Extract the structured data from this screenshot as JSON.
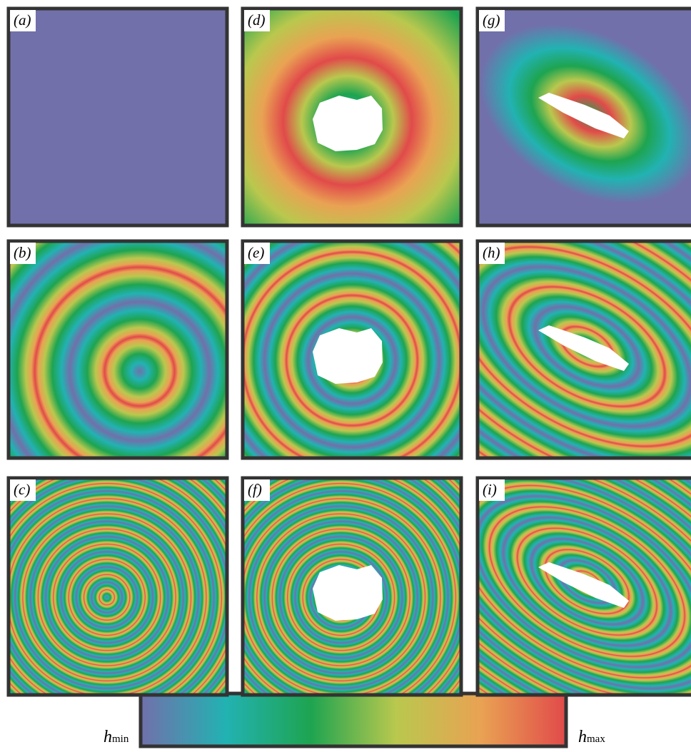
{
  "panels": [
    {
      "label": "(a)"
    },
    {
      "label": "(b)"
    },
    {
      "label": "(c)"
    },
    {
      "label": "(d)"
    },
    {
      "label": "(e)"
    },
    {
      "label": "(f)"
    },
    {
      "label": "(g)"
    },
    {
      "label": "(h)"
    },
    {
      "label": "(i)"
    }
  ],
  "colorbar": {
    "min_label": {
      "symbol": "h",
      "subscript": "min"
    },
    "max_label": {
      "symbol": "h",
      "subscript": "max"
    }
  }
}
